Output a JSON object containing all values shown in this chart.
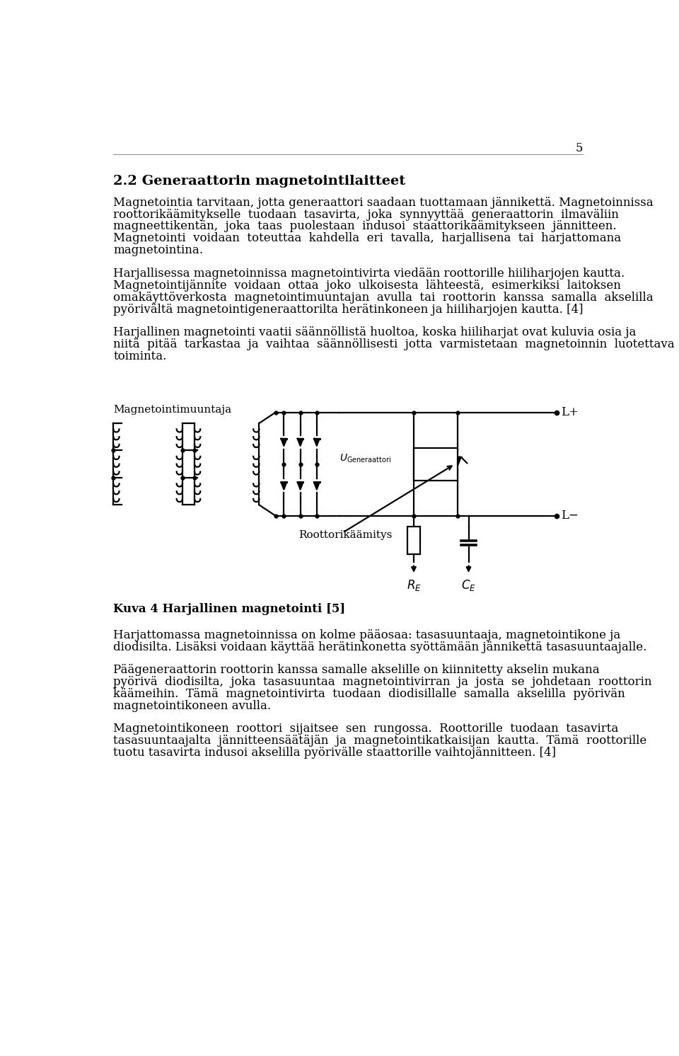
{
  "page_number": "5",
  "section_title": "2.2 Generaattorin magnetointilaitteet",
  "para1_lines": [
    "Magnetointia tarvitaan, jotta generaattori saadaan tuottamaan jännikettä. Magnetoinnissa",
    "roottorikäämitykselle  tuodaan  tasavirta,  joka  synnyyttää  generaattorin  ilmaväliin",
    "magneettikentän,  joka  taas  puolestaan  indusoi  staattorikäämitykseen  jännitteen.",
    "Magnetointi  voidaan  toteuttaa  kahdella  eri  tavalla,  harjallisena  tai  harjattomana",
    "magnetointina."
  ],
  "para2_lines": [
    "Harjallisessa magnetoinnissa magnetointivirta viedään roottorille hiiliharjojen kautta.",
    "Magnetointijännite  voidaan  ottaa  joko  ulkoisesta  lähteestä,  esimerkiksi  laitoksen",
    "omakäyttöverkosta  magnetointimuuntajan  avulla  tai  roottorin  kanssa  samalla  akselilla",
    "pyörivältä magnetointigeneraattorilta herätinkoneen ja hiiliharjojen kautta. [4]"
  ],
  "para3_lines": [
    "Harjallinen magnetointi vaatii säännöllistä huoltoa, koska hiiliharjat ovat kuluvia osia ja",
    "niitä  pitää  tarkastaa  ja  vaihtaa  säännöllisesti  jotta  varmistetaan  magnetoinnin  luotettava",
    "toiminta."
  ],
  "figure_caption": "Kuva 4 Harjallinen magnetointi [5]",
  "para4_lines": [
    "Harjattomassa magnetoinnissa on kolme pääosaa: tasasuuntaaja, magnetointikone ja",
    "diodisilta. Lisäksi voidaan käyttää herätinkonetta syöttämään jännikettä tasasuuntaajalle."
  ],
  "para5_lines": [
    "Päägeneraattorin roottorin kanssa samalle akselille on kiinnitetty akselin mukana",
    "pyörivä  diodisilta,  joka  tasasuuntaa  magnetointivirran  ja  josta  se  johdetaan  roottorin",
    "käämeihin.  Tämä  magnetointivirta  tuodaan  diodisillalle  samalla  akselilla  pyörivän",
    "magnetointikoneen avulla."
  ],
  "para6_lines": [
    "Magnetointikoneen  roottori  sijaitsee  sen  rungossa.  Roottorille  tuodaan  tasavirta",
    "tasasuuntaajalta  jännitteensäätäjän  ja  magnetointikatkaisijan  kautta.  Tämä  roottorille",
    "tuotu tasavirta indusoi akselilla pyörivälle staattorille vaihtojännitteen. [4]"
  ],
  "background_color": "#ffffff",
  "text_color": "#000000",
  "lw": 1.6
}
